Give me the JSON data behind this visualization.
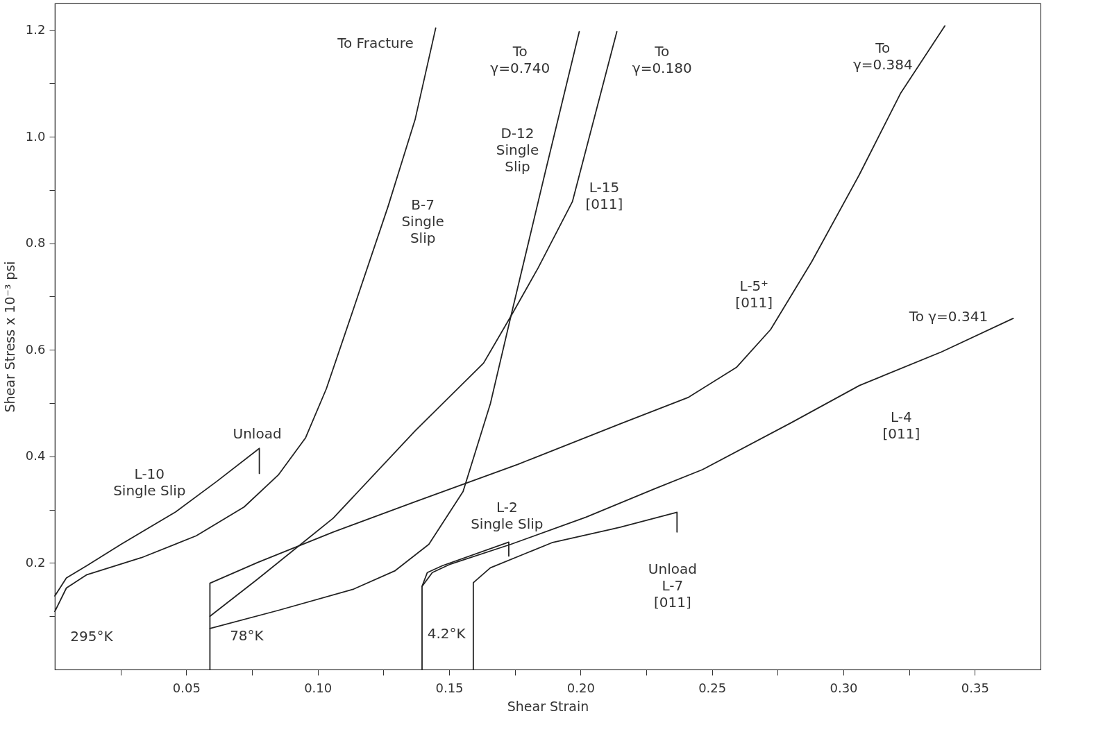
{
  "chart_data": {
    "type": "line",
    "xlabel": "Shear Strain",
    "ylabel": "Shear Stress x 10⁻³ psi",
    "xlim": [
      0,
      0.375
    ],
    "ylim": [
      0,
      1.25
    ],
    "xticks": [
      {
        "value": 0.025,
        "label": null
      },
      {
        "value": 0.05,
        "label": "0.05"
      },
      {
        "value": 0.075,
        "label": null
      },
      {
        "value": 0.1,
        "label": "0.10"
      },
      {
        "value": 0.125,
        "label": null
      },
      {
        "value": 0.15,
        "label": "0.15"
      },
      {
        "value": 0.175,
        "label": null
      },
      {
        "value": 0.2,
        "label": "0.20"
      },
      {
        "value": 0.225,
        "label": null
      },
      {
        "value": 0.25,
        "label": "0.25"
      },
      {
        "value": 0.275,
        "label": null
      },
      {
        "value": 0.3,
        "label": "0.30"
      },
      {
        "value": 0.325,
        "label": null
      },
      {
        "value": 0.35,
        "label": "0.35"
      }
    ],
    "yticks": [
      {
        "value": 0.1,
        "label": null
      },
      0.2,
      {
        "value": 0.3,
        "label": null
      },
      0.4,
      {
        "value": 0.5,
        "label": null
      },
      0.6,
      {
        "value": 0.7,
        "label": null
      },
      0.8,
      {
        "value": 0.9,
        "label": null
      },
      {
        "value": 1.0,
        "label": "1.0"
      },
      {
        "value": 1.1,
        "label": null
      },
      1.2
    ],
    "grid": false,
    "marker": "none",
    "line_style": "solid",
    "series": [
      {
        "color": "#222222",
        "x": [
          0,
          0.0044,
          0.0122,
          0.0252,
          0.046,
          0.0616,
          0.0778,
          0.0778
        ],
        "values": [
          0.138,
          0.172,
          0.195,
          0.235,
          0.296,
          0.353,
          0.415,
          0.368
        ]
      },
      {
        "color": "#222222",
        "x": [
          0,
          0.0044,
          0.0122,
          0.033,
          0.0538,
          0.072,
          0.085,
          0.0954,
          0.1033,
          0.1137,
          0.1267,
          0.1371,
          0.1449
        ],
        "values": [
          0.109,
          0.153,
          0.178,
          0.21,
          0.251,
          0.305,
          0.365,
          0.435,
          0.527,
          0.678,
          0.868,
          1.033,
          1.204
        ]
      },
      {
        "color": "#222222",
        "x": [
          0.059,
          0.059,
          0.0772,
          0.1059,
          0.1371,
          0.1761,
          0.2151,
          0.2411,
          0.2593,
          0.2723,
          0.2879,
          0.3061,
          0.3217,
          0.3386
        ],
        "values": [
          0,
          0.162,
          0.201,
          0.258,
          0.315,
          0.385,
          0.461,
          0.511,
          0.567,
          0.638,
          0.765,
          0.929,
          1.081,
          1.208
        ]
      },
      {
        "color": "#222222",
        "x": [
          0.059,
          0.0772,
          0.1059,
          0.1371,
          0.1631,
          0.1735,
          0.1839,
          0.1969,
          0.2138
        ],
        "values": [
          0.1,
          0.17,
          0.284,
          0.448,
          0.575,
          0.663,
          0.754,
          0.878,
          1.197
        ]
      },
      {
        "color": "#222222",
        "x": [
          0.059,
          0.085,
          0.1137,
          0.1293,
          0.1423,
          0.1553,
          0.1657,
          0.1735,
          0.1865,
          0.1995
        ],
        "values": [
          0.077,
          0.111,
          0.151,
          0.185,
          0.235,
          0.334,
          0.499,
          0.663,
          0.932,
          1.197
        ]
      },
      {
        "color": "#222222",
        "x": [
          0.1397,
          0.1397,
          0.1417,
          0.1475,
          0.1727,
          0.1727
        ],
        "values": [
          0,
          0.156,
          0.182,
          0.195,
          0.239,
          0.213
        ]
      },
      {
        "color": "#222222",
        "x": [
          0.1397,
          0.1436,
          0.1501,
          0.1735,
          0.2021,
          0.2281,
          0.2463,
          0.2801,
          0.3061,
          0.3373,
          0.3646
        ],
        "values": [
          0.156,
          0.182,
          0.197,
          0.235,
          0.286,
          0.339,
          0.375,
          0.463,
          0.533,
          0.596,
          0.659
        ]
      },
      {
        "color": "#222222",
        "x": [
          0.1592,
          0.1592,
          0.1657,
          0.1891,
          0.2151,
          0.2367,
          0.2367
        ],
        "values": [
          0,
          0.163,
          0.191,
          0.238,
          0.267,
          0.295,
          0.258
        ]
      }
    ],
    "annotations": [
      "To Fracture",
      "To\nγ=0.740",
      "To\nγ=0.180",
      "To\nγ=0.384",
      "To γ=0.341",
      "D-12\nSingle\nSlip",
      "B-7\nSingle\nSlip",
      "L-15\n[011]",
      "L-5⁺\n[011]",
      "L-4\n[011]",
      "L-10\nSingle Slip",
      "Unload",
      "L-2\nSingle Slip",
      "Unload\nL-7\n[011]",
      "295°K",
      "78°K",
      "4.2°K"
    ]
  }
}
